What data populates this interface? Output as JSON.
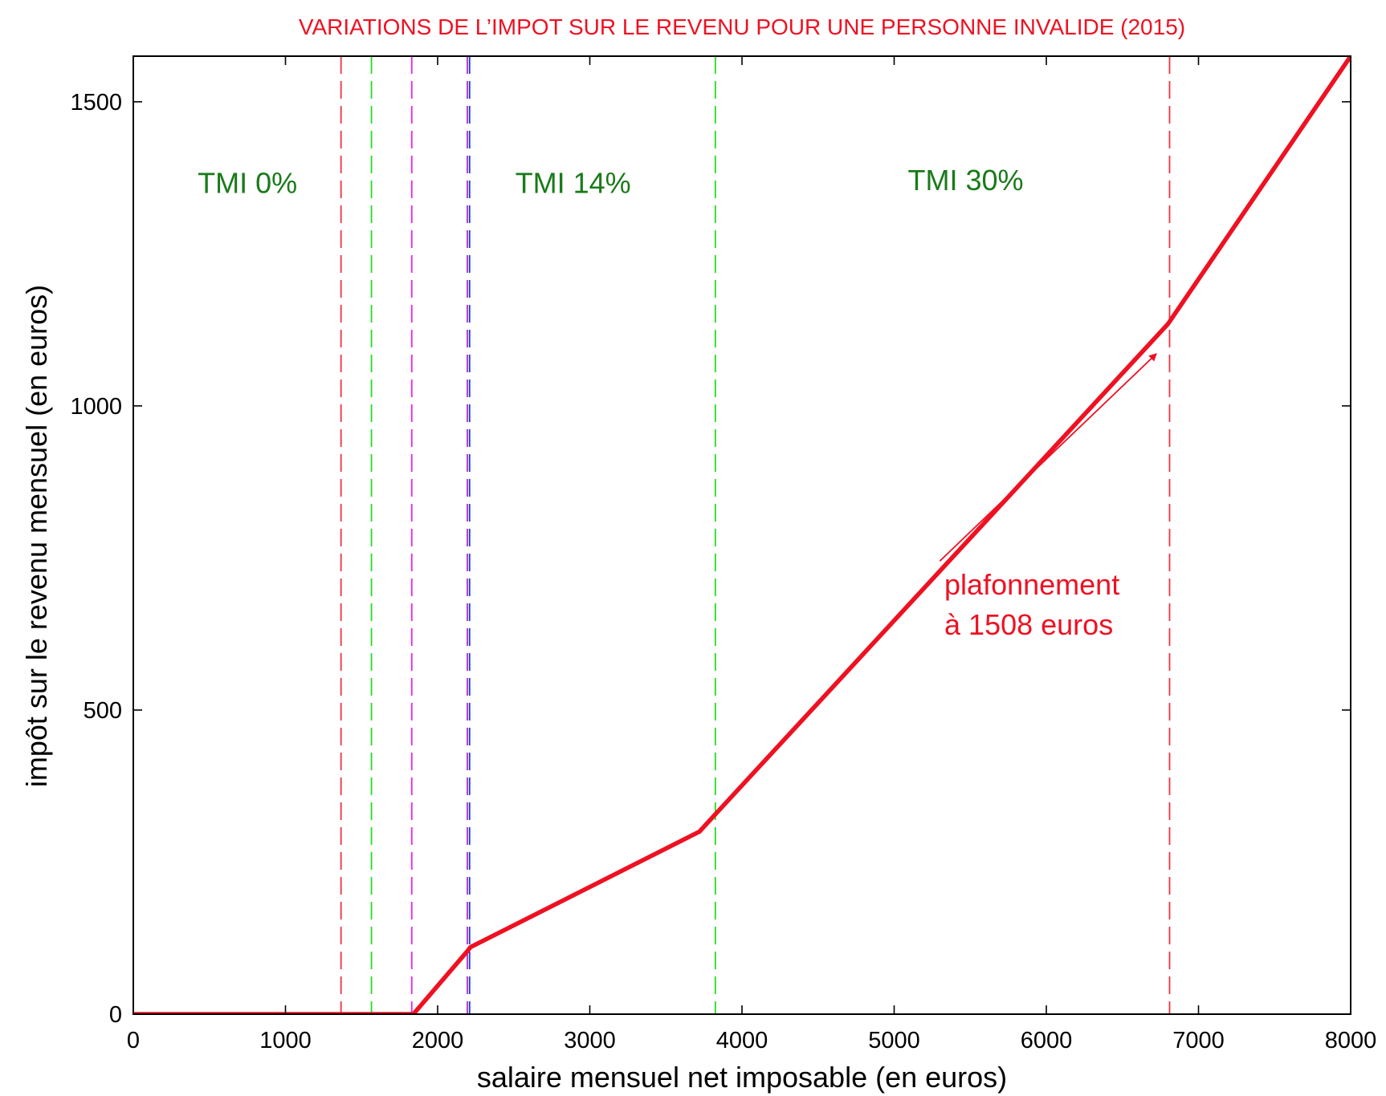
{
  "chart_data": {
    "type": "line",
    "title": "VARIATIONS DE L’IMPOT SUR LE REVENU POUR UNE PERSONNE INVALIDE (2015)",
    "xlabel": "salaire mensuel net imposable (en euros)",
    "ylabel": "impôt sur le revenu mensuel (en euros)",
    "xlim": [
      0,
      8000
    ],
    "ylim": [
      0,
      1575
    ],
    "x_ticks": [
      0,
      1000,
      2000,
      3000,
      4000,
      5000,
      6000,
      7000,
      8000
    ],
    "y_ticks": [
      0,
      500,
      1000,
      1500
    ],
    "grid": false,
    "series": [
      {
        "color": "#ee1122",
        "points": [
          [
            0,
            0
          ],
          [
            1840,
            0
          ],
          [
            2200,
            105
          ],
          [
            2215,
            110
          ],
          [
            3720,
            300
          ],
          [
            3830,
            330
          ],
          [
            6800,
            1135
          ],
          [
            8000,
            1575
          ]
        ]
      }
    ],
    "vertical_lines": [
      {
        "x": 1365,
        "color": "#ee3344"
      },
      {
        "x": 1565,
        "color": "#22dd22"
      },
      {
        "x": 1830,
        "color": "#ee22ee"
      },
      {
        "x": 2195,
        "color": "#aa33bb"
      },
      {
        "x": 2210,
        "color": "#2233ee"
      },
      {
        "x": 3825,
        "color": "#22dd22"
      },
      {
        "x": 6810,
        "color": "#ee3344"
      }
    ],
    "region_labels": [
      {
        "text": "TMI 0%",
        "x": 750,
        "y": 1350
      },
      {
        "text": "TMI 14%",
        "x": 2890,
        "y": 1350
      },
      {
        "text": "TMI 30%",
        "x": 5470,
        "y": 1355
      }
    ],
    "annotation": {
      "lines": [
        "plafonnement",
        "à 1508 euros"
      ],
      "text_x": 5330,
      "text_y": 690,
      "arrow_from": [
        5300,
        745
      ],
      "arrow_to": [
        6720,
        1085
      ]
    },
    "colors": {
      "title": "#ee1122",
      "region_label": "#1a7a1a",
      "annotation": "#ee1122"
    }
  }
}
